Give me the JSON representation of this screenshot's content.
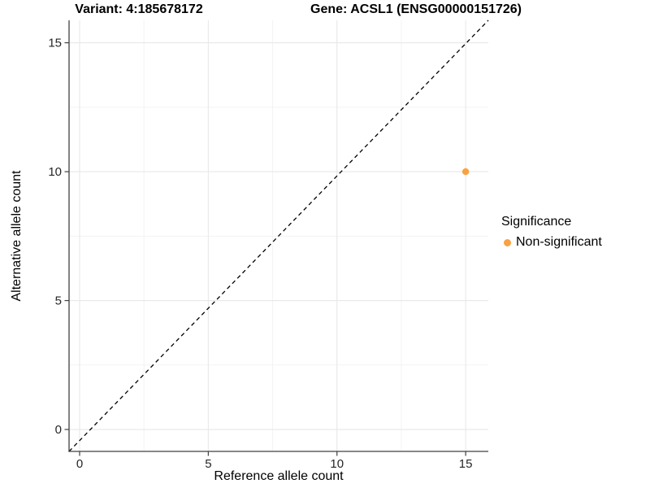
{
  "titles": {
    "variant": "Variant: 4:185678172",
    "gene": "Gene: ACSL1 (ENSG00000151726)"
  },
  "chart_data": {
    "type": "scatter",
    "xlabel": "Reference allele count",
    "ylabel": "Alternative allele count",
    "xlim": [
      -0.41,
      15.88
    ],
    "ylim": [
      -0.85,
      15.87
    ],
    "x_ticks": [
      0,
      5,
      10,
      15
    ],
    "y_ticks": [
      0,
      5,
      10,
      15
    ],
    "x_minor_gridlines": [
      2.5,
      7.5,
      12.5
    ],
    "y_minor_gridlines": [
      2.5,
      7.5,
      12.5
    ],
    "grid": true,
    "identity_line": {
      "type": "dashed",
      "equation": "y = x"
    },
    "points": [
      {
        "x": 15,
        "y": 10,
        "series": "Non-significant"
      }
    ],
    "legend": {
      "title": "Significance",
      "position": "right",
      "entries": [
        {
          "label": "Non-significant",
          "color": "#F9A144"
        }
      ]
    }
  },
  "colors": {
    "background": "#FFFFFF",
    "point": "#F9A144",
    "axis_line": "#404040",
    "tick_mark": "#404040",
    "tick_label": "#262626",
    "grid_major": "#E8E8E8",
    "grid_minor": "#F3F3F3",
    "identity_line": "#000000"
  }
}
